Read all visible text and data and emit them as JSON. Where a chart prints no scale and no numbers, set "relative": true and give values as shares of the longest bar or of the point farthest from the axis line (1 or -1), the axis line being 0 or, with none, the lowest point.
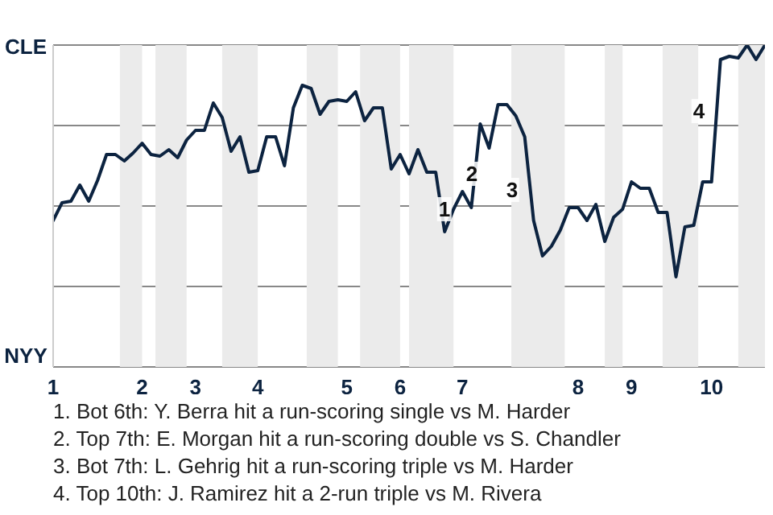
{
  "chart_data": {
    "type": "line",
    "relative": true,
    "categories": [
      "1",
      null,
      null,
      null,
      null,
      null,
      null,
      null,
      null,
      null,
      "2",
      null,
      null,
      null,
      null,
      null,
      "3",
      null,
      null,
      null,
      null,
      null,
      null,
      "4",
      null,
      null,
      null,
      null,
      null,
      null,
      null,
      null,
      null,
      "5",
      null,
      null,
      null,
      null,
      null,
      "6",
      null,
      null,
      null,
      null,
      null,
      null,
      "7",
      null,
      null,
      null,
      null,
      null,
      null,
      null,
      null,
      null,
      null,
      null,
      null,
      "8",
      null,
      null,
      null,
      null,
      null,
      "9",
      null,
      null,
      null,
      null,
      null,
      null,
      null,
      null,
      "10",
      null,
      null,
      null,
      null,
      null,
      null
    ],
    "series": [
      {
        "color": "#0c2340",
        "values": [
          0.455,
          0.51,
          0.515,
          0.565,
          0.515,
          0.58,
          0.66,
          0.66,
          0.64,
          0.665,
          0.695,
          0.66,
          0.655,
          0.675,
          0.65,
          0.705,
          0.735,
          0.735,
          0.82,
          0.775,
          0.67,
          0.715,
          0.605,
          0.61,
          0.715,
          0.715,
          0.625,
          0.805,
          0.875,
          0.865,
          0.785,
          0.825,
          0.83,
          0.825,
          0.855,
          0.765,
          0.805,
          0.805,
          0.615,
          0.66,
          0.6,
          0.675,
          0.605,
          0.605,
          0.42,
          0.49,
          0.545,
          0.495,
          0.755,
          0.68,
          0.815,
          0.815,
          0.78,
          0.715,
          0.455,
          0.345,
          0.375,
          0.425,
          0.495,
          0.495,
          0.455,
          0.505,
          0.39,
          0.465,
          0.49,
          0.575,
          0.555,
          0.555,
          0.48,
          0.48,
          0.28,
          0.435,
          0.44,
          0.575,
          0.575,
          0.955,
          0.965,
          0.96,
          1,
          0.955,
          1
        ]
      }
    ],
    "grid": "y",
    "marker": "none",
    "line_style": "solid",
    "annotations": [
      "CLE",
      "NYY",
      "1",
      "2",
      "3",
      "4",
      "1. Bot 6th: Y. Berra hit a run-scoring single vs M. Harder",
      "2. Top 7th: E. Morgan hit a run-scoring double vs S. Chandler",
      "3. Bot 7th: L. Gehrig hit a run-scoring triple vs M. Harder",
      "4. Top 10th: J. Ramirez hit a 2-run triple vs M. Rivera"
    ]
  }
}
